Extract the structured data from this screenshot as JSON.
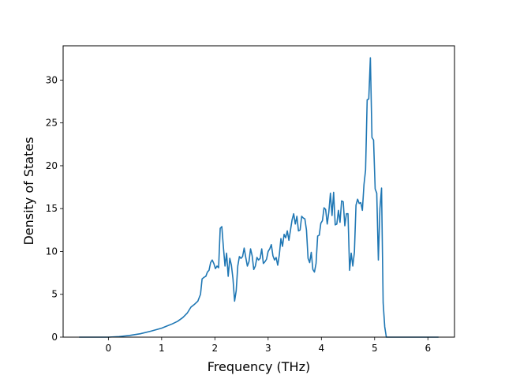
{
  "chart_data": {
    "type": "line",
    "title": "",
    "xlabel": "Frequency (THz)",
    "ylabel": "Density of States",
    "xlim": [
      -0.85,
      6.5
    ],
    "ylim": [
      0,
      34
    ],
    "xticks": [
      0,
      1,
      2,
      3,
      4,
      5,
      6
    ],
    "yticks": [
      0,
      5,
      10,
      15,
      20,
      25,
      30
    ],
    "grid": false,
    "legend": "none",
    "series": [
      {
        "color": "#1f77b4",
        "points": [
          [
            -0.55,
            0.0
          ],
          [
            0.0,
            0.0
          ],
          [
            0.2,
            0.07
          ],
          [
            0.4,
            0.2
          ],
          [
            0.6,
            0.4
          ],
          [
            0.8,
            0.7
          ],
          [
            1.0,
            1.05
          ],
          [
            1.1,
            1.3
          ],
          [
            1.2,
            1.55
          ],
          [
            1.3,
            1.85
          ],
          [
            1.4,
            2.3
          ],
          [
            1.48,
            2.8
          ],
          [
            1.55,
            3.5
          ],
          [
            1.62,
            3.85
          ],
          [
            1.68,
            4.2
          ],
          [
            1.73,
            5.0
          ],
          [
            1.76,
            6.8
          ],
          [
            1.8,
            7.0
          ],
          [
            1.83,
            7.1
          ],
          [
            1.86,
            7.6
          ],
          [
            1.89,
            7.8
          ],
          [
            1.92,
            8.7
          ],
          [
            1.95,
            9.0
          ],
          [
            1.98,
            8.6
          ],
          [
            2.01,
            8.0
          ],
          [
            2.04,
            8.3
          ],
          [
            2.07,
            8.1
          ],
          [
            2.1,
            12.7
          ],
          [
            2.13,
            12.9
          ],
          [
            2.16,
            10.5
          ],
          [
            2.19,
            8.3
          ],
          [
            2.22,
            9.8
          ],
          [
            2.25,
            7.1
          ],
          [
            2.28,
            9.2
          ],
          [
            2.31,
            8.4
          ],
          [
            2.34,
            6.8
          ],
          [
            2.37,
            4.2
          ],
          [
            2.4,
            5.4
          ],
          [
            2.43,
            8.3
          ],
          [
            2.46,
            9.4
          ],
          [
            2.49,
            9.2
          ],
          [
            2.52,
            9.4
          ],
          [
            2.55,
            10.4
          ],
          [
            2.58,
            9.3
          ],
          [
            2.61,
            8.3
          ],
          [
            2.64,
            8.8
          ],
          [
            2.67,
            10.3
          ],
          [
            2.7,
            9.5
          ],
          [
            2.73,
            7.9
          ],
          [
            2.76,
            8.3
          ],
          [
            2.79,
            9.3
          ],
          [
            2.82,
            9.0
          ],
          [
            2.85,
            9.2
          ],
          [
            2.88,
            10.3
          ],
          [
            2.91,
            8.6
          ],
          [
            2.94,
            8.8
          ],
          [
            2.97,
            9.1
          ],
          [
            3.0,
            10.0
          ],
          [
            3.03,
            10.3
          ],
          [
            3.06,
            10.8
          ],
          [
            3.09,
            9.5
          ],
          [
            3.12,
            9.0
          ],
          [
            3.15,
            9.3
          ],
          [
            3.18,
            8.4
          ],
          [
            3.21,
            9.6
          ],
          [
            3.24,
            11.5
          ],
          [
            3.27,
            10.6
          ],
          [
            3.3,
            12.0
          ],
          [
            3.33,
            11.6
          ],
          [
            3.36,
            12.4
          ],
          [
            3.39,
            11.3
          ],
          [
            3.42,
            12.5
          ],
          [
            3.45,
            13.7
          ],
          [
            3.48,
            14.4
          ],
          [
            3.51,
            13.2
          ],
          [
            3.54,
            14.1
          ],
          [
            3.57,
            12.4
          ],
          [
            3.6,
            12.5
          ],
          [
            3.63,
            14.1
          ],
          [
            3.66,
            13.9
          ],
          [
            3.69,
            13.8
          ],
          [
            3.72,
            12.5
          ],
          [
            3.75,
            9.2
          ],
          [
            3.78,
            8.7
          ],
          [
            3.81,
            9.9
          ],
          [
            3.84,
            7.9
          ],
          [
            3.87,
            7.6
          ],
          [
            3.9,
            8.6
          ],
          [
            3.93,
            11.8
          ],
          [
            3.96,
            11.9
          ],
          [
            3.99,
            13.3
          ],
          [
            4.02,
            13.6
          ],
          [
            4.05,
            15.1
          ],
          [
            4.08,
            14.9
          ],
          [
            4.11,
            13.2
          ],
          [
            4.14,
            14.6
          ],
          [
            4.17,
            16.8
          ],
          [
            4.2,
            14.2
          ],
          [
            4.23,
            16.9
          ],
          [
            4.26,
            13.1
          ],
          [
            4.29,
            13.2
          ],
          [
            4.32,
            14.8
          ],
          [
            4.35,
            13.4
          ],
          [
            4.38,
            15.9
          ],
          [
            4.41,
            15.8
          ],
          [
            4.44,
            13.0
          ],
          [
            4.47,
            14.4
          ],
          [
            4.5,
            14.4
          ],
          [
            4.53,
            7.8
          ],
          [
            4.56,
            9.8
          ],
          [
            4.59,
            8.3
          ],
          [
            4.62,
            9.9
          ],
          [
            4.65,
            15.4
          ],
          [
            4.68,
            16.1
          ],
          [
            4.71,
            15.6
          ],
          [
            4.74,
            15.7
          ],
          [
            4.77,
            14.8
          ],
          [
            4.8,
            17.8
          ],
          [
            4.83,
            19.5
          ],
          [
            4.86,
            27.7
          ],
          [
            4.89,
            27.8
          ],
          [
            4.92,
            32.6
          ],
          [
            4.95,
            23.3
          ],
          [
            4.98,
            23.0
          ],
          [
            5.01,
            17.3
          ],
          [
            5.04,
            16.8
          ],
          [
            5.07,
            9.0
          ],
          [
            5.1,
            15.0
          ],
          [
            5.13,
            17.4
          ],
          [
            5.16,
            4.0
          ],
          [
            5.19,
            1.2
          ],
          [
            5.22,
            0.0
          ],
          [
            5.25,
            0.0
          ],
          [
            6.2,
            0.0
          ]
        ]
      }
    ]
  }
}
